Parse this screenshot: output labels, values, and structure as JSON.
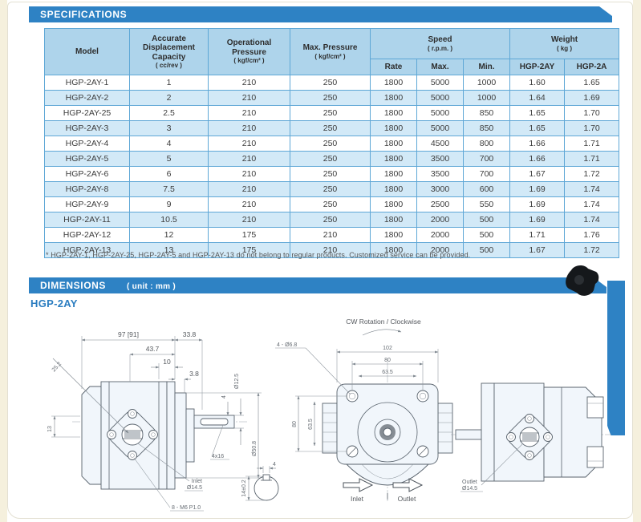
{
  "colors": {
    "banner_blue": "#2e82c4",
    "header_fill": "#aed4eb",
    "row_alt": "#d2e9f7",
    "border_blue": "#5ea7d6",
    "title_blue": "#2b7dc0",
    "page_edge": "#f5f0dd"
  },
  "spec": {
    "banner": "SPECIFICATIONS",
    "headers": {
      "model": "Model",
      "capacity": "Accurate Displacement Capacity",
      "capacity_unit": "( cc/rev )",
      "op_pressure": "Operational Pressure",
      "op_pressure_unit": "( kgf/cm² )",
      "max_pressure": "Max. Pressure",
      "max_pressure_unit": "( kgf/cm² )",
      "speed": "Speed",
      "speed_unit": "( r.p.m. )",
      "rate": "Rate",
      "max": "Max.",
      "min": "Min.",
      "weight": "Weight",
      "weight_unit": "( kg )",
      "weight_col1": "HGP-2AY",
      "weight_col2": "HGP-2A"
    },
    "rows": [
      [
        "HGP-2AY-1",
        "1",
        "210",
        "250",
        "1800",
        "5000",
        "1000",
        "1.60",
        "1.65"
      ],
      [
        "HGP-2AY-2",
        "2",
        "210",
        "250",
        "1800",
        "5000",
        "1000",
        "1.64",
        "1.69"
      ],
      [
        "HGP-2AY-25",
        "2.5",
        "210",
        "250",
        "1800",
        "5000",
        "850",
        "1.65",
        "1.70"
      ],
      [
        "HGP-2AY-3",
        "3",
        "210",
        "250",
        "1800",
        "5000",
        "850",
        "1.65",
        "1.70"
      ],
      [
        "HGP-2AY-4",
        "4",
        "210",
        "250",
        "1800",
        "4500",
        "800",
        "1.66",
        "1.71"
      ],
      [
        "HGP-2AY-5",
        "5",
        "210",
        "250",
        "1800",
        "3500",
        "700",
        "1.66",
        "1.71"
      ],
      [
        "HGP-2AY-6",
        "6",
        "210",
        "250",
        "1800",
        "3500",
        "700",
        "1.67",
        "1.72"
      ],
      [
        "HGP-2AY-8",
        "7.5",
        "210",
        "250",
        "1800",
        "3000",
        "600",
        "1.69",
        "1.74"
      ],
      [
        "HGP-2AY-9",
        "9",
        "210",
        "250",
        "1800",
        "2500",
        "550",
        "1.69",
        "1.74"
      ],
      [
        "HGP-2AY-11",
        "10.5",
        "210",
        "250",
        "1800",
        "2000",
        "500",
        "1.69",
        "1.74"
      ],
      [
        "HGP-2AY-12",
        "12",
        "175",
        "210",
        "1800",
        "2000",
        "500",
        "1.71",
        "1.76"
      ],
      [
        "HGP-2AY-13",
        "13",
        "175",
        "210",
        "1800",
        "2000",
        "500",
        "1.67",
        "1.72"
      ]
    ],
    "footnote": "* HGP-2AY-1, HGP-2AY-25, HGP-2AY-5 and HGP-2AY-13 do not belong to regular products.  Customized service can be provided."
  },
  "dims": {
    "banner": "DIMENSIONS",
    "unit": "( unit : mm )",
    "model": "HGP-2AY"
  },
  "drawing": {
    "rotation_label": "CW Rotation / Clockwise",
    "side": {
      "len_total": "97 [91]",
      "len_shaft": "33.8",
      "d43_7": "43.7",
      "d10": "10",
      "d3_8": "3.8",
      "d25_2": "25.2",
      "d13": "13",
      "dia_shaft": "Ø12.5",
      "dia_pilot": "Ø50.8",
      "d4": "4",
      "keyway": "4x16",
      "inlet_l1": "Inlet",
      "inlet_l2": "Ø14.5",
      "bolts": "8 - M6 P1.0",
      "key_h": "14±0.2",
      "key_w": "4"
    },
    "front": {
      "holes": "4 - Ø6.8",
      "w102": "102",
      "w80": "80",
      "w63_5": "63.5",
      "h80": "80",
      "h63_5": "63.5",
      "inlet": "Inlet",
      "outlet": "Outlet"
    },
    "rear": {
      "outlet_l1": "Outlet",
      "outlet_l2": "Ø14.5"
    }
  }
}
